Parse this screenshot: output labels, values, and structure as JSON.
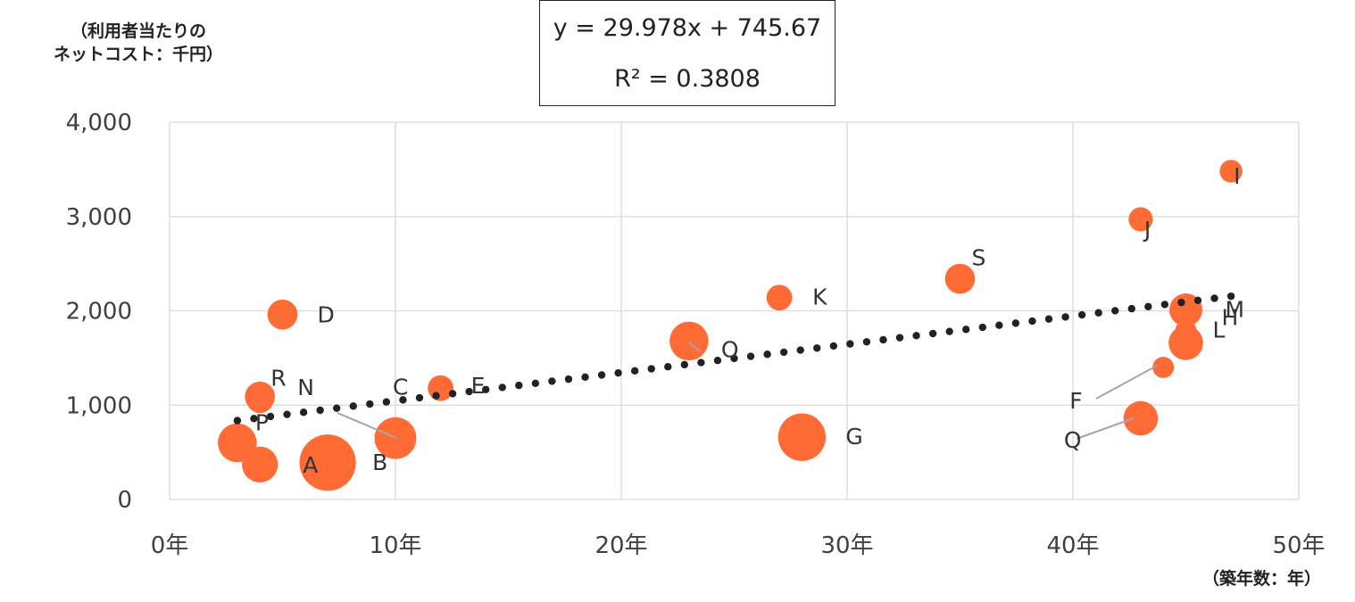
{
  "chart_data": {
    "type": "scatter",
    "ylabel_lines": [
      "（利用者当たりの",
      "ネットコスト：千円）"
    ],
    "xlabel": "（築年数：年）",
    "equation": "y = 29.978x + 745.67",
    "r_squared": "R² = 0.3808",
    "xlim": [
      0,
      50
    ],
    "ylim": [
      0,
      4000
    ],
    "x_ticks": [
      0,
      10,
      20,
      30,
      40,
      50
    ],
    "x_tick_labels": [
      "0年",
      "10年",
      "20年",
      "30年",
      "40年",
      "50年"
    ],
    "y_ticks": [
      0,
      1000,
      2000,
      3000,
      4000
    ],
    "y_tick_labels": [
      "0",
      "1,000",
      "2,000",
      "3,000",
      "4,000"
    ],
    "grid": true,
    "colors": {
      "point": "#FF6B35",
      "trend": "#222222",
      "grid": "#D9D9D9",
      "leader": "#A6A6A6"
    },
    "trendline": {
      "slope": 29.978,
      "intercept": 745.67,
      "x_range": [
        3,
        47
      ]
    },
    "points": [
      {
        "label": "A",
        "x": 4,
        "y": 370,
        "size": 1.6
      },
      {
        "label": "B",
        "x": 7,
        "y": 390,
        "size": 3.0
      },
      {
        "label": "C",
        "x": 10,
        "y": 650,
        "size": 2.0
      },
      {
        "label": "D",
        "x": 5,
        "y": 1960,
        "size": 1.2
      },
      {
        "label": "E",
        "x": 12,
        "y": 1180,
        "size": 0.9
      },
      {
        "label": "F",
        "x": 44,
        "y": 1400,
        "size": 0.6
      },
      {
        "label": "G",
        "x": 28,
        "y": 660,
        "size": 2.4
      },
      {
        "label": "H",
        "x": 45,
        "y": 1660,
        "size": 1.5
      },
      {
        "label": "I",
        "x": 47,
        "y": 3480,
        "size": 0.7
      },
      {
        "label": "J",
        "x": 43,
        "y": 2970,
        "size": 0.8
      },
      {
        "label": "K",
        "x": 27,
        "y": 2140,
        "size": 0.9
      },
      {
        "label": "L",
        "x": 45,
        "y": 1790,
        "size": 0.6
      },
      {
        "label": "M",
        "x": 45,
        "y": 2010,
        "size": 1.4
      },
      {
        "label": "N",
        "x": 4,
        "y": 1060,
        "size": 1.0
      },
      {
        "label": "O",
        "x": 23,
        "y": 1680,
        "size": 1.8
      },
      {
        "label": "P",
        "x": 3,
        "y": 600,
        "size": 1.8
      },
      {
        "label": "Q",
        "x": 43,
        "y": 860,
        "size": 1.5
      },
      {
        "label": "R",
        "x": 4,
        "y": 1090,
        "size": 1.2
      },
      {
        "label": "S",
        "x": 35,
        "y": 2340,
        "size": 1.2
      }
    ]
  }
}
